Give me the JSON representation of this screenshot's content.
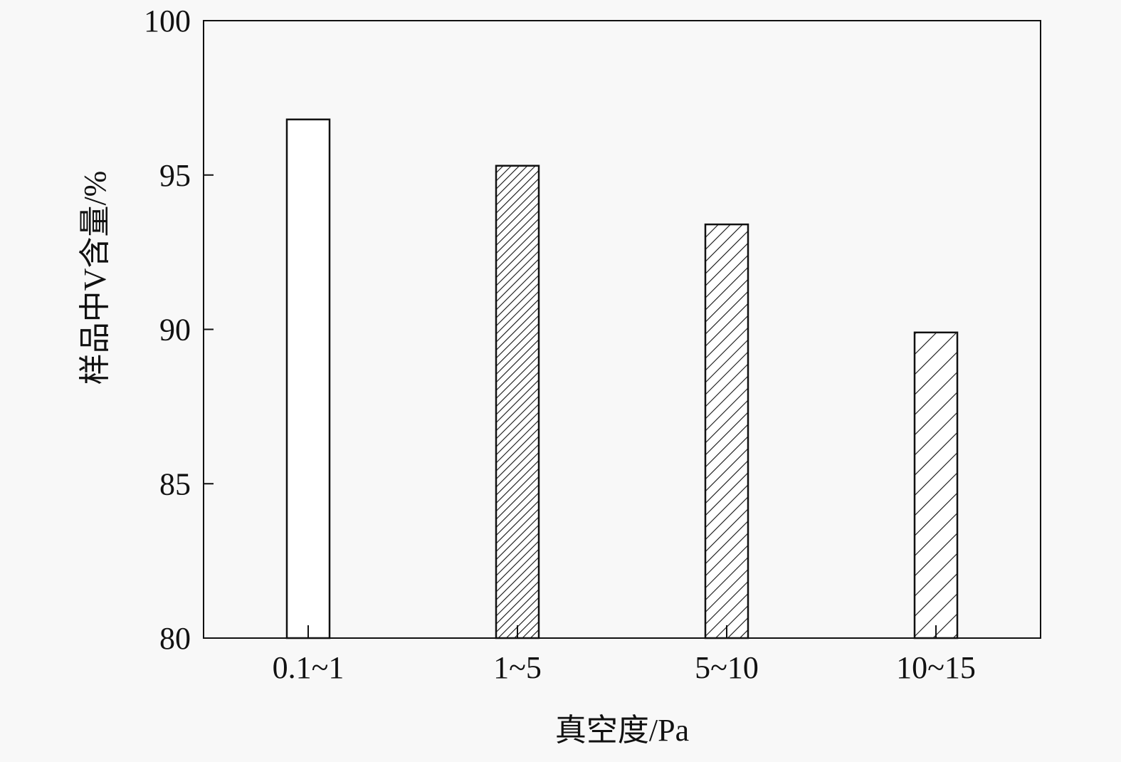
{
  "chart_data": {
    "type": "bar",
    "categories": [
      "0.1~1",
      "1~5",
      "5~10",
      "10~15"
    ],
    "values": [
      96.8,
      95.3,
      93.4,
      89.9
    ],
    "title": "",
    "xlabel": "真空度/Pa",
    "ylabel": "样品中V含量/%",
    "ylim": [
      80,
      100
    ],
    "yticks": [
      80,
      85,
      90,
      95,
      100
    ],
    "grid": false,
    "legend": "none",
    "bar_fills": [
      "none",
      "dense-hatch",
      "medium-hatch",
      "sparse-hatch"
    ],
    "colors": {
      "stroke": "#111111",
      "fill": "#ffffff",
      "background": "#f8f8f8"
    }
  }
}
